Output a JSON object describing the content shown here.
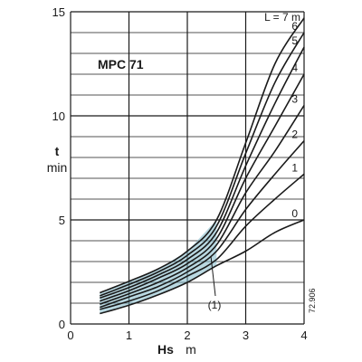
{
  "chart_data": {
    "type": "line",
    "title": "MPC 71",
    "xlabel": {
      "symbol": "Hs",
      "unit": "m"
    },
    "ylabel": {
      "symbol": "t",
      "unit": "min"
    },
    "xlim": [
      0,
      4
    ],
    "ylim": [
      0,
      15
    ],
    "x_ticks": [
      "0",
      "1",
      "2",
      "3",
      "4"
    ],
    "y_ticks": [
      "0",
      "5",
      "10",
      "15"
    ],
    "grid": true,
    "legend_header": "L = 7 m",
    "annotation": "(1)",
    "reference_code": "72.906",
    "band_color": "#7fb8c8",
    "series": [
      {
        "name": "0",
        "x": [
          0.5,
          1.0,
          1.5,
          2.0,
          2.5,
          3.0,
          3.5,
          4.0
        ],
        "y": [
          0.5,
          0.9,
          1.4,
          2.0,
          2.8,
          3.5,
          4.4,
          5.0
        ]
      },
      {
        "name": "1",
        "x": [
          0.5,
          1.0,
          1.5,
          2.0,
          2.5,
          3.0,
          3.5,
          4.0
        ],
        "y": [
          0.7,
          1.1,
          1.6,
          2.3,
          3.1,
          4.7,
          6.0,
          7.2
        ]
      },
      {
        "name": "2",
        "x": [
          0.5,
          1.0,
          1.5,
          2.0,
          2.5,
          3.0,
          3.5,
          4.0
        ],
        "y": [
          0.8,
          1.3,
          1.8,
          2.5,
          3.5,
          5.5,
          7.2,
          8.8
        ]
      },
      {
        "name": "3",
        "x": [
          0.5,
          1.0,
          1.5,
          2.0,
          2.5,
          3.0,
          3.5,
          4.0
        ],
        "y": [
          0.95,
          1.45,
          2.0,
          2.7,
          3.8,
          6.3,
          8.3,
          10.5
        ]
      },
      {
        "name": "4",
        "x": [
          0.5,
          1.0,
          1.5,
          2.0,
          2.5,
          3.0,
          3.5,
          4.0
        ],
        "y": [
          1.1,
          1.6,
          2.2,
          2.9,
          4.1,
          7.0,
          9.5,
          12.0
        ]
      },
      {
        "name": "5",
        "x": [
          0.5,
          1.0,
          1.5,
          2.0,
          2.5,
          3.0,
          3.5,
          4.0
        ],
        "y": [
          1.25,
          1.75,
          2.35,
          3.1,
          4.4,
          7.6,
          10.6,
          13.3
        ]
      },
      {
        "name": "6",
        "x": [
          0.5,
          1.0,
          1.5,
          2.0,
          2.5,
          3.0,
          3.5,
          4.0
        ],
        "y": [
          1.35,
          1.9,
          2.5,
          3.3,
          4.7,
          8.2,
          11.6,
          14.0
        ]
      },
      {
        "name": "L = 7 m",
        "x": [
          0.5,
          1.0,
          1.5,
          2.0,
          2.5,
          3.0,
          3.5,
          4.0
        ],
        "y": [
          1.5,
          2.05,
          2.65,
          3.5,
          5.0,
          8.7,
          12.5,
          14.7
        ]
      }
    ]
  }
}
